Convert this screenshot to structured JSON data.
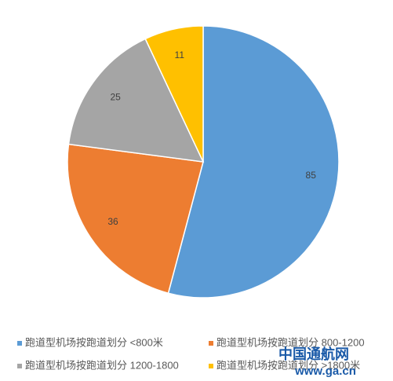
{
  "chart_data": {
    "type": "pie",
    "categories": [
      "跑道型机场按跑道划分 <800米",
      "跑道型机场按跑道划分 800-1200",
      "跑道型机场按跑道划分 1200-1800",
      "跑道型机场按跑道划分 >1800米"
    ],
    "values": [
      85,
      36,
      25,
      11
    ],
    "colors": [
      "#5b9bd5",
      "#ed7d31",
      "#a5a5a5",
      "#ffc000"
    ],
    "legend": "bottom"
  },
  "watermark": {
    "title": "中国通航网",
    "url": "www.ga.cn"
  }
}
